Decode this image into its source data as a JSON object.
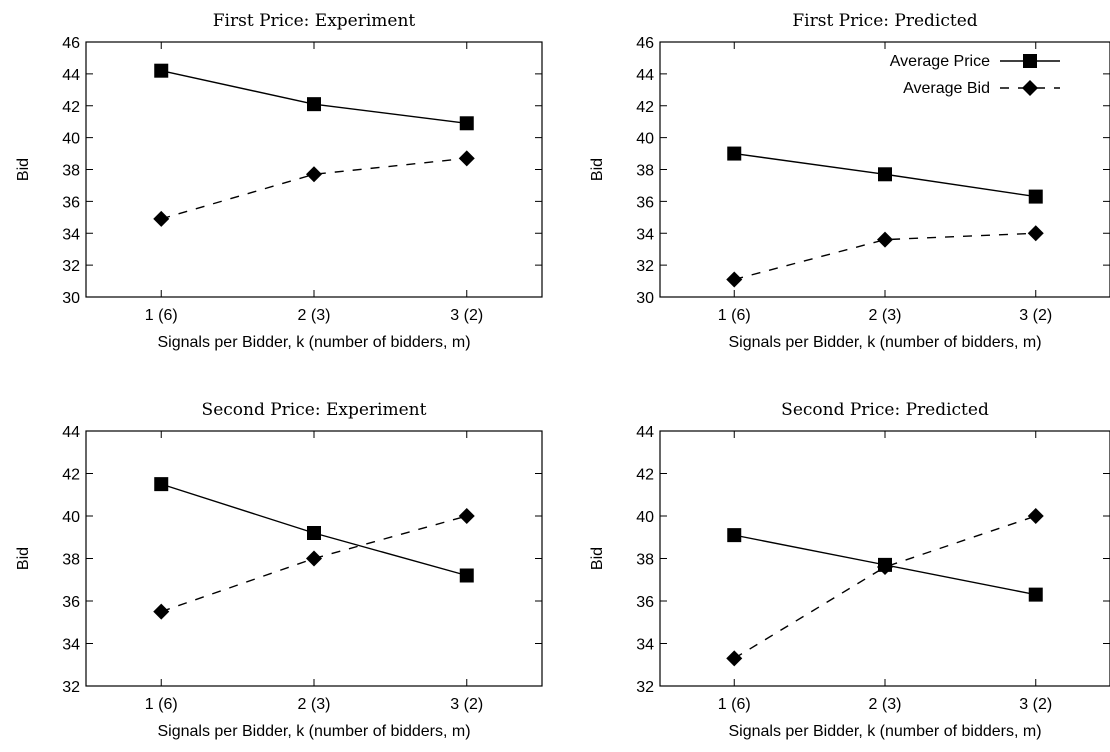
{
  "chart_data": [
    {
      "type": "line",
      "title": "First Price: Experiment",
      "xlabel": "Signals per Bidder, k (number of bidders, m)",
      "ylabel": "Bid",
      "categories": [
        "1 (6)",
        "2 (3)",
        "3 (2)"
      ],
      "ylim": [
        30,
        46
      ],
      "yticks": [
        30,
        32,
        34,
        36,
        38,
        40,
        42,
        44,
        46
      ],
      "series": [
        {
          "name": "Average Price",
          "values": [
            44.2,
            42.1,
            40.9
          ]
        },
        {
          "name": "Average Bid",
          "values": [
            34.9,
            37.7,
            38.7
          ]
        }
      ]
    },
    {
      "type": "line",
      "title": "First Price: Predicted",
      "xlabel": "Signals per Bidder, k (number of bidders, m)",
      "ylabel": "Bid",
      "categories": [
        "1 (6)",
        "2 (3)",
        "3 (2)"
      ],
      "ylim": [
        30,
        46
      ],
      "yticks": [
        30,
        32,
        34,
        36,
        38,
        40,
        42,
        44,
        46
      ],
      "legend": "top-right",
      "series": [
        {
          "name": "Average Price",
          "values": [
            39.0,
            37.7,
            36.3
          ]
        },
        {
          "name": "Average Bid",
          "values": [
            31.1,
            33.6,
            34.0
          ]
        }
      ]
    },
    {
      "type": "line",
      "title": "Second Price: Experiment",
      "xlabel": "Signals per Bidder, k (number of bidders, m)",
      "ylabel": "Bid",
      "categories": [
        "1 (6)",
        "2 (3)",
        "3 (2)"
      ],
      "ylim": [
        32,
        44
      ],
      "yticks": [
        32,
        34,
        36,
        38,
        40,
        42,
        44
      ],
      "series": [
        {
          "name": "Average Price",
          "values": [
            41.5,
            39.2,
            37.2
          ]
        },
        {
          "name": "Average Bid",
          "values": [
            35.5,
            38.0,
            40.0
          ]
        }
      ]
    },
    {
      "type": "line",
      "title": "Second Price: Predicted",
      "xlabel": "Signals per Bidder, k (number of bidders, m)",
      "ylabel": "Bid",
      "categories": [
        "1 (6)",
        "2 (3)",
        "3 (2)"
      ],
      "ylim": [
        32,
        44
      ],
      "yticks": [
        32,
        34,
        36,
        38,
        40,
        42,
        44
      ],
      "series": [
        {
          "name": "Average Price",
          "values": [
            39.1,
            37.7,
            36.3
          ]
        },
        {
          "name": "Average Bid",
          "values": [
            33.3,
            37.6,
            40.0
          ]
        }
      ]
    }
  ],
  "colors": {
    "line": "#000000",
    "background": "#ffffff"
  }
}
